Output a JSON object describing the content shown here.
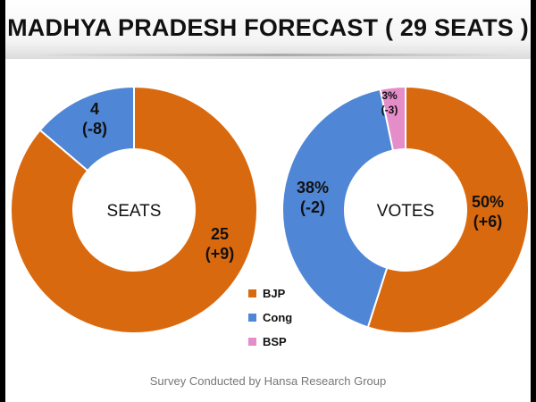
{
  "title": "MADHYA PRADESH FORECAST ( 29 SEATS )",
  "footer": "Survey Conducted by Hansa Research Group",
  "colors": {
    "BJP": "#d9690f",
    "Cong": "#4f86d6",
    "BSP": "#e48dc9"
  },
  "chart_data": [
    {
      "type": "pie",
      "center_label": "SEATS",
      "slices": [
        {
          "name": "BJP",
          "value": 25,
          "label": "25",
          "change": "(+9)"
        },
        {
          "name": "Cong",
          "value": 4,
          "label": "4",
          "change": "(-8)"
        }
      ]
    },
    {
      "type": "pie",
      "center_label": "VOTES",
      "slices": [
        {
          "name": "BJP",
          "value": 50,
          "label": "50%",
          "change": "(+6)"
        },
        {
          "name": "Cong",
          "value": 38,
          "label": "38%",
          "change": "(-2)"
        },
        {
          "name": "BSP",
          "value": 3,
          "label": "3%",
          "change": "(-3)"
        }
      ]
    }
  ],
  "legend": [
    "BJP",
    "Cong",
    "BSP"
  ]
}
